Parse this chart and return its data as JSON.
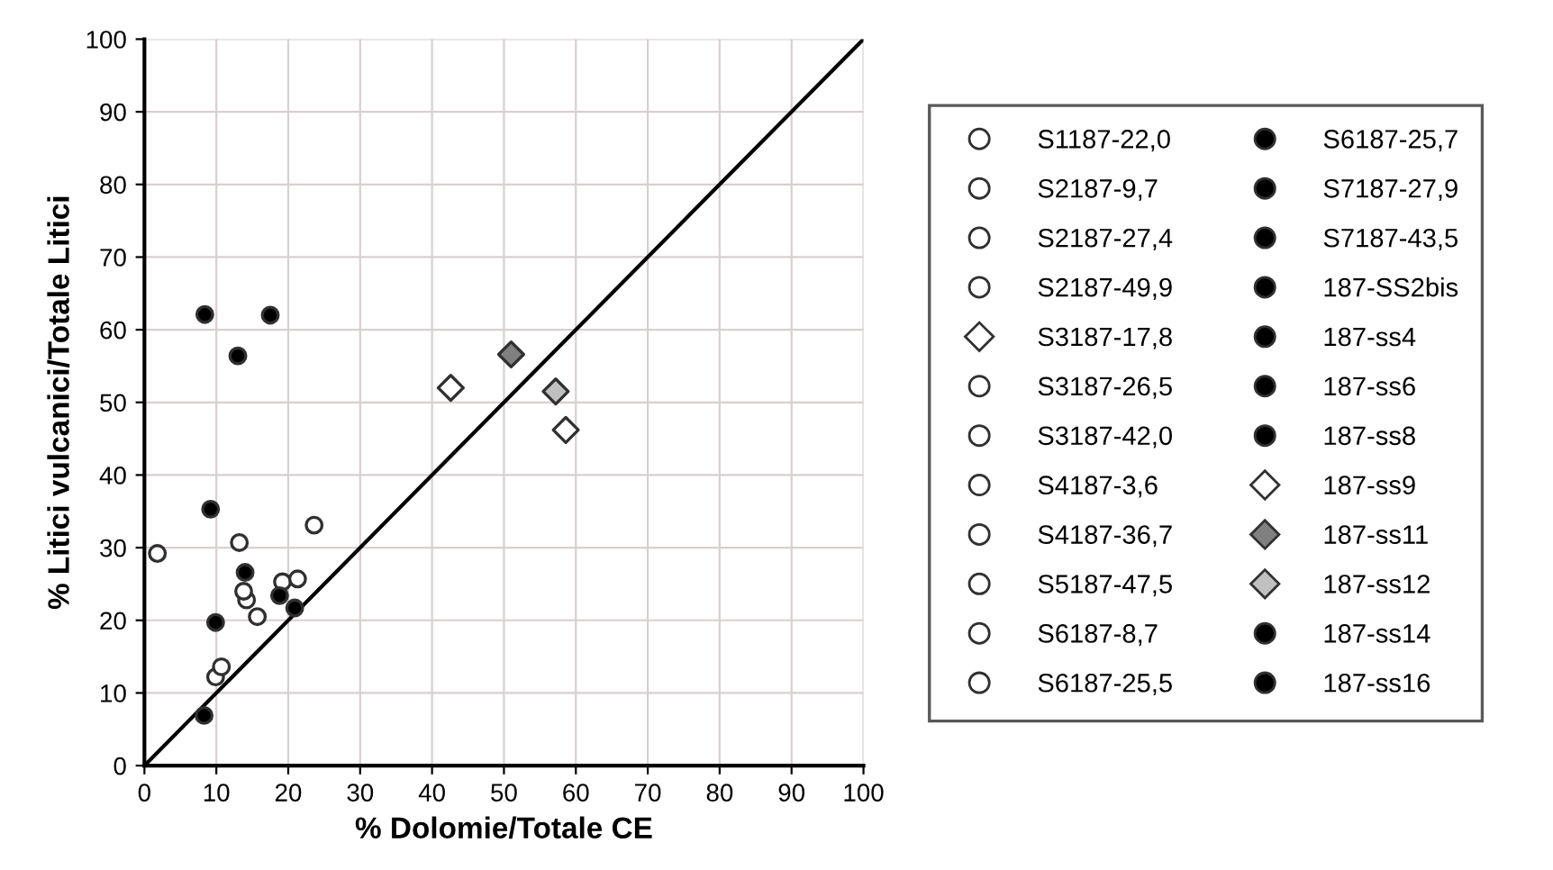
{
  "chart_data": {
    "type": "scatter",
    "xlabel": "% Dolomie/Totale CE",
    "ylabel": "% Litici vulcanici/Totale Litici",
    "xlim": [
      0,
      100
    ],
    "ylim": [
      0,
      100
    ],
    "xticks": [
      0,
      10,
      20,
      30,
      40,
      50,
      60,
      70,
      80,
      90,
      100
    ],
    "yticks": [
      0,
      10,
      20,
      30,
      40,
      50,
      60,
      70,
      80,
      90,
      100
    ],
    "grid": true,
    "legend": "right",
    "series": [
      {
        "name": "S1187-22,0",
        "marker": "circle",
        "color": "#ffffff",
        "x": [
          null
        ],
        "values": [
          null
        ]
      },
      {
        "name": "S2187-9,7",
        "marker": "circle",
        "color": "#ffffff",
        "x": [
          23.6
        ],
        "values": [
          33.1
        ]
      },
      {
        "name": "S2187-27,4",
        "marker": "circle",
        "color": "#ffffff",
        "x": [
          9.9
        ],
        "values": [
          12.2
        ]
      },
      {
        "name": "S2187-49,9",
        "marker": "circle",
        "color": "#ffffff",
        "x": [
          1.8
        ],
        "values": [
          29.2
        ]
      },
      {
        "name": "S3187-17,8",
        "marker": "diamond",
        "color": "#ffffff",
        "x": [
          58.6
        ],
        "values": [
          46.2
        ]
      },
      {
        "name": "S3187-26,5",
        "marker": "circle",
        "color": "#ffffff",
        "x": [
          15.7
        ],
        "values": [
          20.5
        ]
      },
      {
        "name": "S3187-42,0",
        "marker": "circle",
        "color": "#ffffff",
        "x": [
          19.2
        ],
        "values": [
          25.3
        ]
      },
      {
        "name": "S4187-3,6",
        "marker": "circle",
        "color": "#ffffff",
        "x": [
          14.2
        ],
        "values": [
          22.8
        ]
      },
      {
        "name": "S4187-36,7",
        "marker": "circle",
        "color": "#ffffff",
        "x": [
          13.8
        ],
        "values": [
          24.0
        ]
      },
      {
        "name": "S5187-47,5",
        "marker": "circle",
        "color": "#ffffff",
        "x": [
          10.7
        ],
        "values": [
          13.6
        ]
      },
      {
        "name": "S6187-8,7",
        "marker": "circle",
        "color": "#ffffff",
        "x": [
          13.2
        ],
        "values": [
          30.7
        ]
      },
      {
        "name": "S6187-25,5",
        "marker": "circle",
        "color": "#ffffff",
        "x": [
          21.3
        ],
        "values": [
          25.7
        ]
      },
      {
        "name": "S6187-25,7",
        "marker": "circle",
        "color": "#000000",
        "x": [
          8.3
        ],
        "values": [
          6.9
        ]
      },
      {
        "name": "S7187-27,9",
        "marker": "circle",
        "color": "#000000",
        "x": [
          9.2
        ],
        "values": [
          35.3
        ]
      },
      {
        "name": "S7187-43,5",
        "marker": "circle",
        "color": "#000000",
        "x": [
          20.9
        ],
        "values": [
          21.7
        ]
      },
      {
        "name": "187-SS2bis",
        "marker": "circle",
        "color": "#000000",
        "x": [
          14.0
        ],
        "values": [
          26.6
        ]
      },
      {
        "name": "187-ss4",
        "marker": "circle",
        "color": "#000000",
        "x": [
          13.0
        ],
        "values": [
          56.4
        ]
      },
      {
        "name": "187-ss6",
        "marker": "circle",
        "color": "#000000",
        "x": [
          17.5
        ],
        "values": [
          62.0
        ]
      },
      {
        "name": "187-ss8",
        "marker": "circle",
        "color": "#000000",
        "x": [
          18.8
        ],
        "values": [
          23.4
        ]
      },
      {
        "name": "187-ss9",
        "marker": "diamond",
        "color": "#ffffff",
        "x": [
          42.6
        ],
        "values": [
          52.0
        ]
      },
      {
        "name": "187-ss11",
        "marker": "diamond",
        "color": "#808080",
        "x": [
          51.0
        ],
        "values": [
          56.6
        ]
      },
      {
        "name": "187-ss12",
        "marker": "diamond",
        "color": "#c0c0c0",
        "x": [
          57.2
        ],
        "values": [
          51.5
        ]
      },
      {
        "name": "187-ss14",
        "marker": "circle",
        "color": "#000000",
        "x": [
          8.4
        ],
        "values": [
          62.1
        ]
      },
      {
        "name": "187-ss16",
        "marker": "circle",
        "color": "#000000",
        "x": [
          9.9
        ],
        "values": [
          19.7
        ]
      },
      {
        "type": "line",
        "color": "#000000",
        "marker": "none",
        "x": [
          0,
          100
        ],
        "values": [
          0,
          100
        ]
      }
    ]
  }
}
